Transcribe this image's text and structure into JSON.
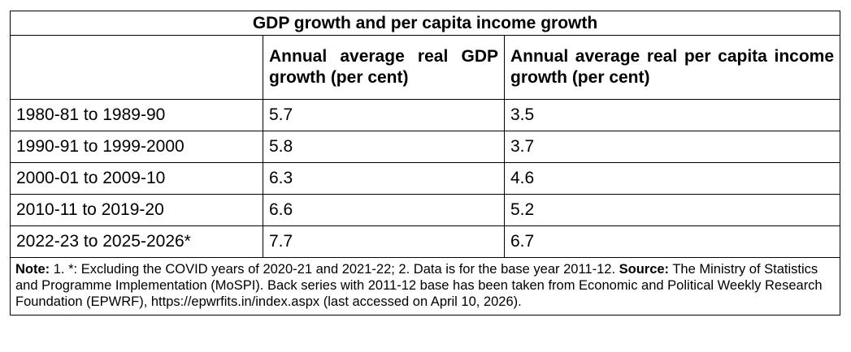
{
  "table": {
    "title": "GDP growth and per capita income growth",
    "headers": {
      "period": "",
      "gdp_growth": "Annual average real GDP growth (per cent)",
      "per_capita_growth": "Annual average real per capita income growth (per cent)"
    },
    "rows": [
      {
        "period": "1980-81 to 1989-90",
        "gdp_growth": "5.7",
        "per_capita_growth": "3.5"
      },
      {
        "period": "1990-91 to 1999-2000",
        "gdp_growth": "5.8",
        "per_capita_growth": "3.7"
      },
      {
        "period": "2000-01 to 2009-10",
        "gdp_growth": "6.3",
        "per_capita_growth": "4.6"
      },
      {
        "period": "2010-11 to 2019-20",
        "gdp_growth": "6.6",
        "per_capita_growth": "5.2"
      },
      {
        "period": "2022-23 to 2025-2026*",
        "gdp_growth": "7.7",
        "per_capita_growth": "6.7"
      }
    ],
    "note": {
      "note_label": "Note:",
      "note_text": " 1. *: Excluding the COVID years of 2020-21 and 2021-22; 2. Data is for the base year 2011-12. ",
      "source_label": "Source:",
      "source_text": " The Ministry of Statistics and Programme Implementation (MoSPI). Back series with 2011-12 base has been taken from Economic and Political Weekly Research Foundation (EPWRF), https://epwrfits.in/index.aspx (last accessed on April 10, 2026)."
    }
  }
}
